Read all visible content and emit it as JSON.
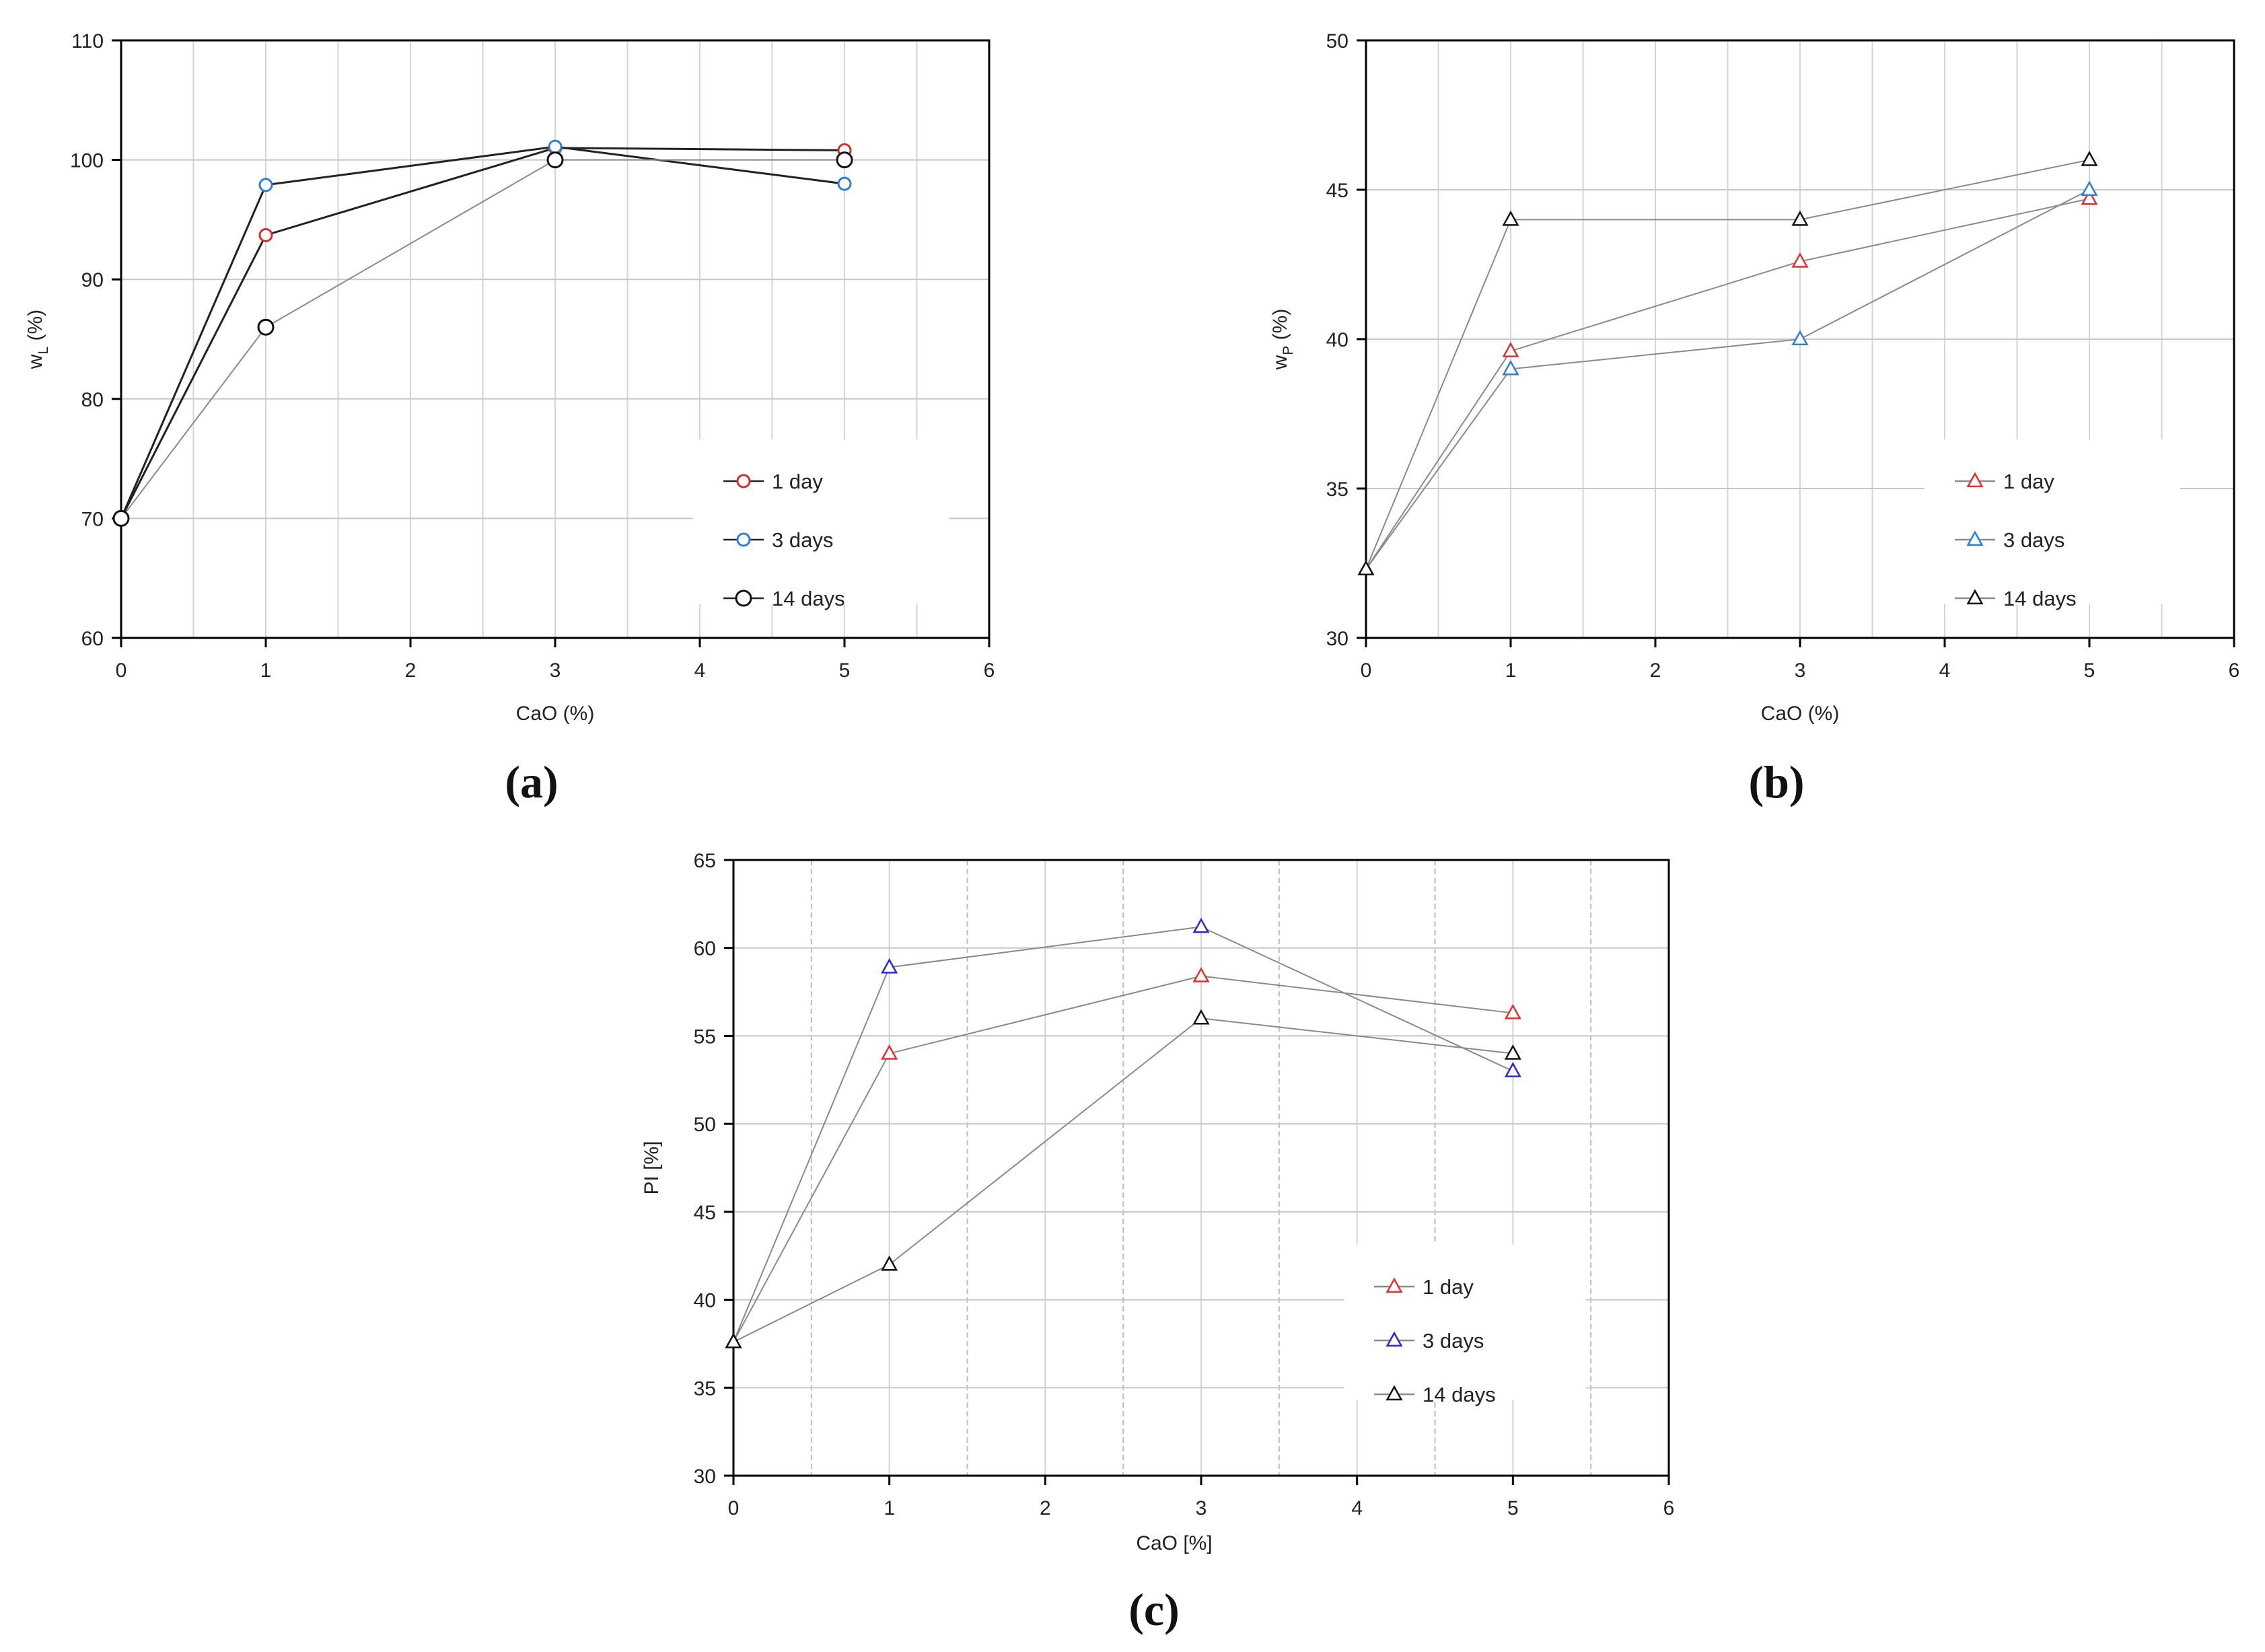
{
  "figure": {
    "panels": [
      "(a)",
      "(b)",
      "(c)"
    ]
  },
  "chart_data": [
    {
      "id": "a",
      "type": "line",
      "panel_label": "(a)",
      "marker": "circle",
      "title": "",
      "xlabel": "CaO (%)",
      "ylabel_main": "w",
      "ylabel_sub": "L",
      "ylabel_rest": " (%)",
      "xlim": [
        0,
        6
      ],
      "ylim": [
        60,
        110
      ],
      "xticks": [
        0,
        1,
        2,
        3,
        4,
        5,
        6
      ],
      "yticks": [
        60,
        70,
        80,
        90,
        100,
        110
      ],
      "x_minor_grid": [
        0.5,
        1.5,
        2.5,
        3.5,
        4.5,
        5.5
      ],
      "y_grid": [
        70,
        80,
        90,
        100
      ],
      "legend_position": "bottom-right",
      "series": [
        {
          "name": "1 day",
          "color": "#d03030",
          "x": [
            0,
            1,
            3,
            5
          ],
          "y": [
            70,
            93.7,
            101,
            100.8
          ]
        },
        {
          "name": "3 days",
          "color": "#2f7fd0",
          "x": [
            0,
            1,
            3,
            5
          ],
          "y": [
            70,
            97.9,
            101.1,
            98
          ]
        },
        {
          "name": "14 days",
          "color": "#111111",
          "x": [
            0,
            1,
            3,
            5
          ],
          "y": [
            70,
            86,
            100,
            100
          ]
        }
      ]
    },
    {
      "id": "b",
      "type": "line",
      "panel_label": "(b)",
      "marker": "triangle",
      "title": "",
      "xlabel": "CaO (%)",
      "ylabel_main": "w",
      "ylabel_sub": "P",
      "ylabel_rest": " (%)",
      "xlim": [
        0,
        6
      ],
      "ylim": [
        30,
        50
      ],
      "xticks": [
        0,
        1,
        2,
        3,
        4,
        5,
        6
      ],
      "yticks": [
        30,
        35,
        40,
        45,
        50
      ],
      "x_minor_grid": [
        0.5,
        1.5,
        2.5,
        3.5,
        4.5,
        5.5
      ],
      "y_grid": [
        35,
        40,
        45
      ],
      "legend_position": "bottom-right",
      "series": [
        {
          "name": "1 day",
          "color": "#e03030",
          "x": [
            0,
            1,
            3,
            5
          ],
          "y": [
            32.3,
            39.6,
            42.6,
            44.7
          ]
        },
        {
          "name": "3 days",
          "color": "#2f7fd0",
          "x": [
            0,
            1,
            3,
            5
          ],
          "y": [
            32.3,
            39,
            40,
            45
          ]
        },
        {
          "name": "14 days",
          "color": "#111111",
          "x": [
            0,
            1,
            3,
            5
          ],
          "y": [
            32.3,
            44,
            44,
            46
          ]
        }
      ]
    },
    {
      "id": "c",
      "type": "line",
      "panel_label": "(c)",
      "marker": "triangle",
      "title": "",
      "xlabel": "CaO [%]",
      "ylabel_main": "PI [%]",
      "ylabel_sub": "",
      "ylabel_rest": "",
      "xlim": [
        0,
        6
      ],
      "ylim": [
        30,
        65
      ],
      "xticks": [
        0,
        1,
        2,
        3,
        4,
        5,
        6
      ],
      "yticks": [
        30,
        35,
        40,
        45,
        50,
        55,
        60,
        65
      ],
      "x_minor_grid": [
        0.5,
        1.5,
        2.5,
        3.5,
        4.5,
        5.5
      ],
      "y_grid": [
        35,
        40,
        45,
        50,
        55,
        60
      ],
      "legend_position": "bottom-right",
      "series": [
        {
          "name": "1 day",
          "color": "#e03030",
          "x": [
            0,
            1,
            3,
            5
          ],
          "y": [
            37.6,
            54,
            58.4,
            56.3
          ]
        },
        {
          "name": "3 days",
          "color": "#2a2ad0",
          "x": [
            0,
            1,
            3,
            5
          ],
          "y": [
            37.6,
            58.9,
            61.2,
            53
          ]
        },
        {
          "name": "14 days",
          "color": "#111111",
          "x": [
            0,
            1,
            3,
            5
          ],
          "y": [
            37.6,
            42,
            56,
            54
          ]
        }
      ]
    }
  ]
}
